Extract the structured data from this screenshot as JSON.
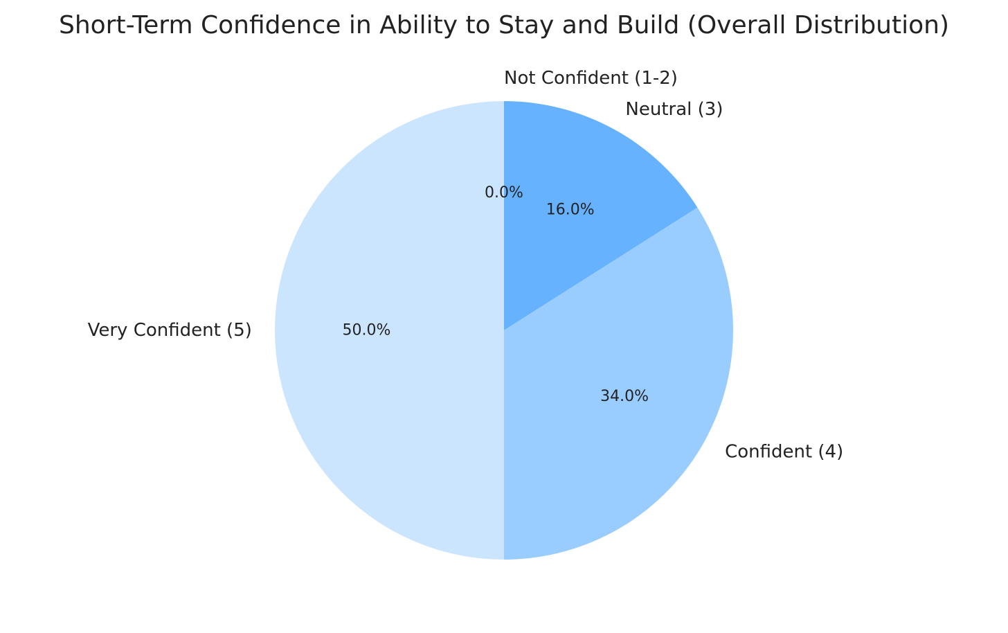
{
  "chart_data": {
    "type": "pie",
    "title": "Short-Term Confidence in Ability to Stay and Build (Overall Distribution)",
    "start_angle_deg": 90,
    "direction": "clockwise",
    "slices": [
      {
        "label": "Not Confident (1-2)",
        "value": 0.0,
        "pct_label": "0.0%",
        "color": "#3399ff"
      },
      {
        "label": "Neutral (3)",
        "value": 16.0,
        "pct_label": "16.0%",
        "color": "#66b2ff"
      },
      {
        "label": "Confident (4)",
        "value": 34.0,
        "pct_label": "34.0%",
        "color": "#99ccff"
      },
      {
        "label": "Very Confident (5)",
        "value": 50.0,
        "pct_label": "50.0%",
        "color": "#cce5ff"
      }
    ]
  }
}
